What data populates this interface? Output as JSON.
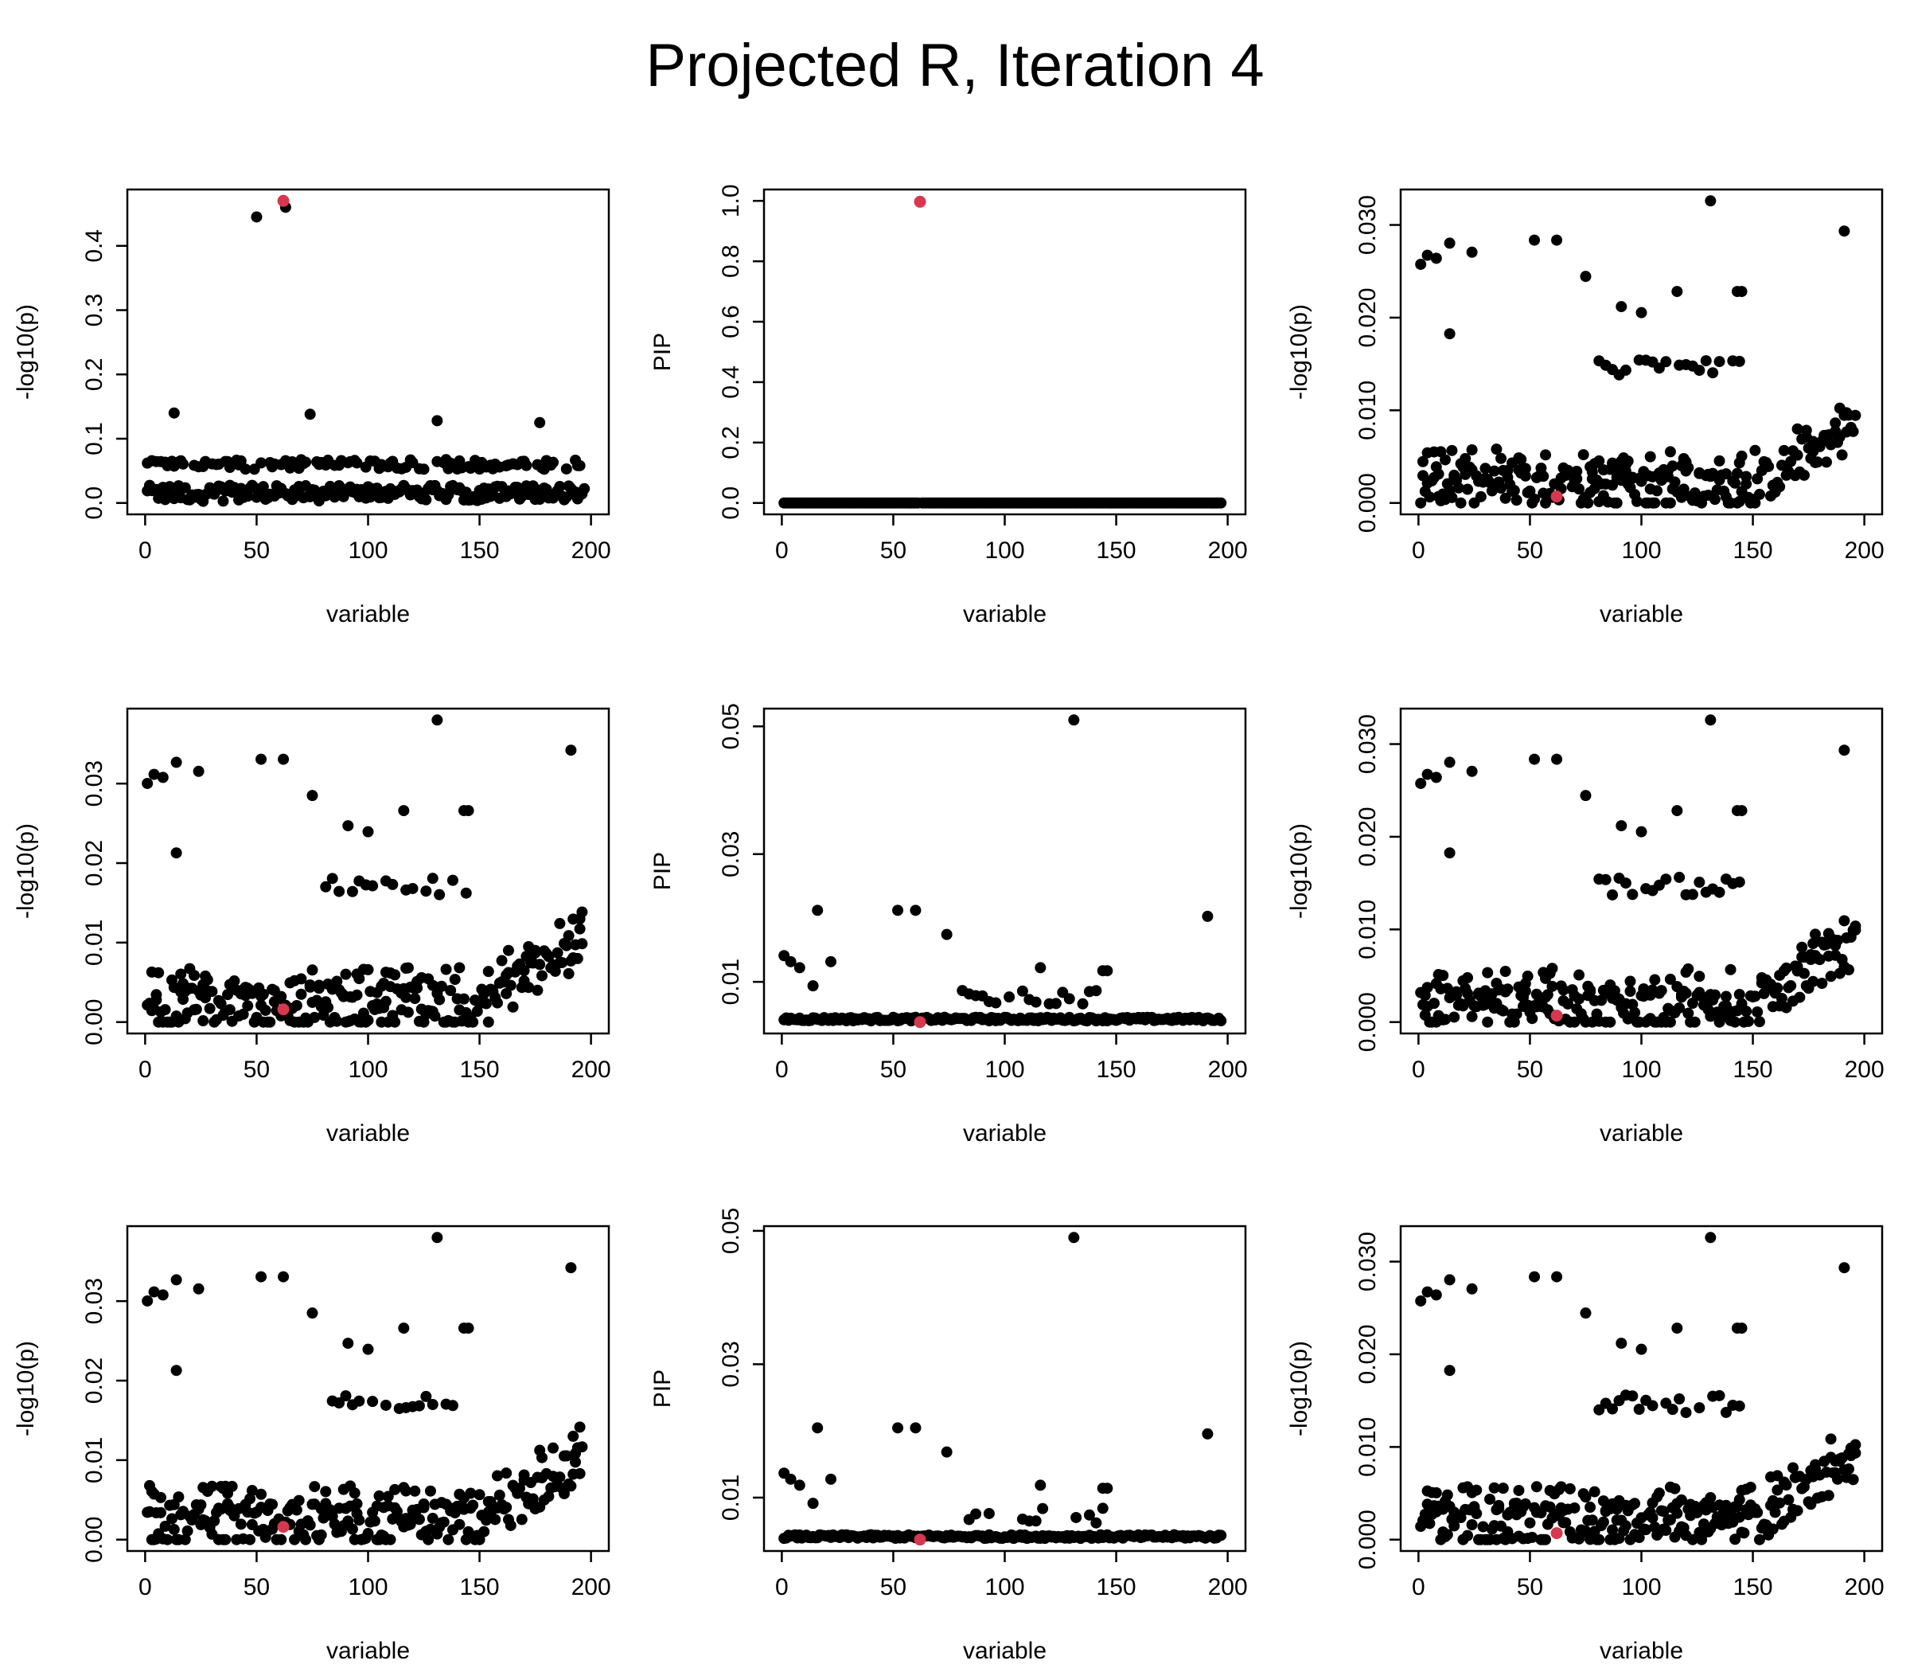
{
  "title": "Projected R, Iteration 4",
  "colors": {
    "point": "#000000",
    "highlight": "#d6384f",
    "axis": "#000000",
    "background": "#ffffff"
  },
  "chart_data": [
    {
      "type": "scatter",
      "name": "row1-col1",
      "xlabel": "variable",
      "ylabel": "-log10(p)",
      "xlim": [
        0,
        200
      ],
      "ylim": [
        0,
        0.47
      ],
      "yticks": [
        0.0,
        0.1,
        0.2,
        0.3,
        0.4
      ],
      "ytick_labels": [
        "0.0",
        "0.1",
        "0.2",
        "0.3",
        "0.4"
      ],
      "xticks": [
        0,
        50,
        100,
        150,
        200
      ],
      "xtick_labels": [
        "0",
        "50",
        "100",
        "150",
        "200"
      ],
      "highlight_point": {
        "x": 62,
        "y": 0.47
      },
      "pattern": "c11",
      "notable_points": [
        {
          "x": 50,
          "y": 0.445
        },
        {
          "x": 63,
          "y": 0.46
        },
        {
          "x": 13,
          "y": 0.14
        },
        {
          "x": 74,
          "y": 0.138
        },
        {
          "x": 131,
          "y": 0.128
        },
        {
          "x": 177,
          "y": 0.125
        }
      ]
    },
    {
      "type": "scatter",
      "name": "row1-col2",
      "xlabel": "variable",
      "ylabel": "PIP",
      "xlim": [
        0,
        200
      ],
      "ylim": [
        0,
        1.0
      ],
      "yticks": [
        0.0,
        0.2,
        0.4,
        0.6,
        0.8,
        1.0
      ],
      "ytick_labels": [
        "0.0",
        "0.2",
        "0.4",
        "0.6",
        "0.8",
        "1.0"
      ],
      "xticks": [
        0,
        50,
        100,
        150,
        200
      ],
      "xtick_labels": [
        "0",
        "50",
        "100",
        "150",
        "200"
      ],
      "highlight_point": {
        "x": 62,
        "y": 0.997
      },
      "pattern": "flat",
      "baseline": 0.0
    },
    {
      "type": "scatter",
      "name": "row1-col3",
      "xlabel": "variable",
      "ylabel": "-log10(p)",
      "xlim": [
        0,
        200
      ],
      "ylim": [
        0,
        0.0326
      ],
      "yticks": [
        0.0,
        0.01,
        0.02,
        0.03
      ],
      "ytick_labels": [
        "0.000",
        "0.010",
        "0.020",
        "0.030"
      ],
      "xticks": [
        0,
        50,
        100,
        150,
        200
      ],
      "xtick_labels": [
        "0",
        "50",
        "100",
        "150",
        "200"
      ],
      "highlight_point": {
        "x": 62,
        "y": 0.0007
      },
      "pattern": "c3",
      "scale": 0.0326
    },
    {
      "type": "scatter",
      "name": "row2-col1",
      "xlabel": "variable",
      "ylabel": "-log10(p)",
      "xlim": [
        0,
        200
      ],
      "ylim": [
        0,
        0.038
      ],
      "yticks": [
        0.0,
        0.01,
        0.02,
        0.03
      ],
      "ytick_labels": [
        "0.00",
        "0.01",
        "0.02",
        "0.03"
      ],
      "xticks": [
        0,
        50,
        100,
        150,
        200
      ],
      "xtick_labels": [
        "0",
        "50",
        "100",
        "150",
        "200"
      ],
      "highlight_point": {
        "x": 62,
        "y": 0.0016
      },
      "pattern": "c3",
      "scale": 0.038
    },
    {
      "type": "scatter",
      "name": "row2-col2",
      "xlabel": "variable",
      "ylabel": "PIP",
      "xlim": [
        0,
        200
      ],
      "ylim": [
        0.0037,
        0.051
      ],
      "yticks": [
        0.01,
        0.03,
        0.05
      ],
      "ytick_labels": [
        "0.01",
        "0.03",
        "0.05"
      ],
      "xticks": [
        0,
        50,
        100,
        150,
        200
      ],
      "xtick_labels": [
        "0",
        "50",
        "100",
        "150",
        "200"
      ],
      "highlight_point": {
        "x": 62,
        "y": 0.0037
      },
      "pattern": "pip",
      "baseline": 0.0037,
      "scale": 0.0473
    },
    {
      "type": "scatter",
      "name": "row2-col3",
      "xlabel": "variable",
      "ylabel": "-log10(p)",
      "xlim": [
        0,
        200
      ],
      "ylim": [
        0,
        0.0326
      ],
      "yticks": [
        0.0,
        0.01,
        0.02,
        0.03
      ],
      "ytick_labels": [
        "0.000",
        "0.010",
        "0.020",
        "0.030"
      ],
      "xticks": [
        0,
        50,
        100,
        150,
        200
      ],
      "xtick_labels": [
        "0",
        "50",
        "100",
        "150",
        "200"
      ],
      "highlight_point": {
        "x": 62,
        "y": 0.0007
      },
      "pattern": "c3",
      "scale": 0.0326
    },
    {
      "type": "scatter",
      "name": "row3-col1",
      "xlabel": "variable",
      "ylabel": "-log10(p)",
      "xlim": [
        0,
        200
      ],
      "ylim": [
        0,
        0.038
      ],
      "yticks": [
        0.0,
        0.01,
        0.02,
        0.03
      ],
      "ytick_labels": [
        "0.00",
        "0.01",
        "0.02",
        "0.03"
      ],
      "xticks": [
        0,
        50,
        100,
        150,
        200
      ],
      "xtick_labels": [
        "0",
        "50",
        "100",
        "150",
        "200"
      ],
      "highlight_point": {
        "x": 62,
        "y": 0.0016
      },
      "pattern": "c3",
      "scale": 0.038
    },
    {
      "type": "scatter",
      "name": "row3-col2",
      "xlabel": "variable",
      "ylabel": "PIP",
      "xlim": [
        0,
        200
      ],
      "ylim": [
        0.0037,
        0.049
      ],
      "yticks": [
        0.01,
        0.03,
        0.05
      ],
      "ytick_labels": [
        "0.01",
        "0.03",
        "0.05"
      ],
      "xticks": [
        0,
        50,
        100,
        150,
        200
      ],
      "xtick_labels": [
        "0",
        "50",
        "100",
        "150",
        "200"
      ],
      "highlight_point": {
        "x": 62,
        "y": 0.0037
      },
      "pattern": "pip",
      "baseline": 0.0037,
      "scale": 0.0453
    },
    {
      "type": "scatter",
      "name": "row3-col3",
      "xlabel": "variable",
      "ylabel": "-log10(p)",
      "xlim": [
        0,
        200
      ],
      "ylim": [
        0,
        0.0326
      ],
      "yticks": [
        0.0,
        0.01,
        0.02,
        0.03
      ],
      "ytick_labels": [
        "0.000",
        "0.010",
        "0.020",
        "0.030"
      ],
      "xticks": [
        0,
        50,
        100,
        150,
        200
      ],
      "xtick_labels": [
        "0",
        "50",
        "100",
        "150",
        "200"
      ],
      "highlight_point": {
        "x": 62,
        "y": 0.0007
      },
      "pattern": "c3",
      "scale": 0.0326
    }
  ]
}
